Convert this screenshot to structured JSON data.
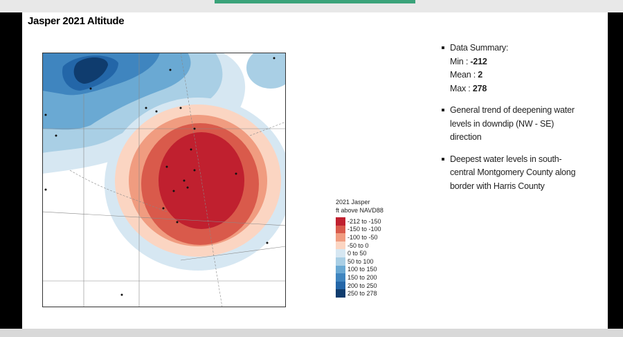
{
  "slide": {
    "title": "Jasper 2021 Altitude",
    "legend": {
      "title_lines": [
        "2021 Jasper",
        "ft above NAVD88"
      ],
      "items": [
        {
          "label": "-212 to -150",
          "color": "#c0202f"
        },
        {
          "label": "-150 to -100",
          "color": "#d95a4b"
        },
        {
          "label": "-100 to -50",
          "color": "#f09c80"
        },
        {
          "label": "-50 to 0",
          "color": "#fbd5c2"
        },
        {
          "label": "0 to 50",
          "color": "#d6e7f2"
        },
        {
          "label": "50 to 100",
          "color": "#a9cfe5"
        },
        {
          "label": "100 to 150",
          "color": "#6aa9d3"
        },
        {
          "label": "150 to 200",
          "color": "#3f85bf"
        },
        {
          "label": "200 to 250",
          "color": "#2366a8"
        },
        {
          "label": "250 to 278",
          "color": "#0f3c6e"
        }
      ]
    },
    "bullets": [
      {
        "lines": [
          "Data Summary:"
        ],
        "stats": [
          {
            "label": "Min : ",
            "value": "-212"
          },
          {
            "label": "Mean : ",
            "value": "2"
          },
          {
            "label": "Max : ",
            "value": "278"
          }
        ]
      },
      {
        "lines": [
          "General trend of deepening water",
          "levels in downdip (NW - SE)",
          "direction"
        ]
      },
      {
        "lines": [
          "Deepest water levels in south-",
          "central Montgomery County along",
          "border with Harris County"
        ]
      }
    ]
  }
}
